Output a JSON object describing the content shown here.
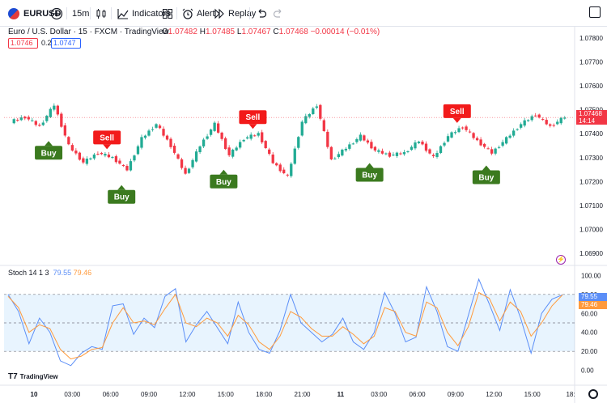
{
  "toolbar": {
    "symbol": "EURUSD",
    "interval": "15m",
    "indicators_label": "Indicators",
    "alert_label": "Alert",
    "replay_label": "Replay"
  },
  "legend": {
    "title": "Euro / U.S. Dollar · 15 · FXCM · TradingView",
    "o_label": "O",
    "o_value": "1.07482",
    "h_label": "H",
    "h_value": "1.07485",
    "l_label": "L",
    "l_value": "1.07467",
    "c_label": "C",
    "c_value": "1.07468",
    "change": "−0.00014 (−0.01%)",
    "bid": "1.0746",
    "spread": "0.2",
    "ask": "1.0747"
  },
  "price_tag": {
    "price": "1.07468",
    "countdown": "14:14"
  },
  "stoch": {
    "name": "Stoch",
    "params": "14 1 3",
    "k_value": "79.55",
    "d_value": "79.46"
  },
  "branding": "TradingView",
  "signals": {
    "buy_label": "Buy",
    "sell_label": "Sell",
    "buy_ticks": [
      2,
      7,
      14,
      24,
      32
    ],
    "sell_ticks": [
      16,
      6,
      30
    ]
  },
  "colors": {
    "up": "#22ab94",
    "down": "#f23645",
    "stoch_k": "#5b8ef7",
    "stoch_d": "#ff9a3c",
    "buy": "#3b7a1f",
    "sell": "#f21a1a"
  },
  "chart_data": [
    {
      "type": "candlestick",
      "title": "Euro / U.S. Dollar · 15 · FXCM · TradingView",
      "y_ticks": [
        "1.07800",
        "1.07700",
        "1.07600",
        "1.07500",
        "1.07400",
        "1.07300",
        "1.07200",
        "1.07100",
        "1.07000",
        "1.06900"
      ],
      "x_ticks": [
        "10",
        "03:00",
        "06:00",
        "09:00",
        "12:00",
        "15:00",
        "18:00",
        "21:00",
        "11",
        "03:00",
        "06:00",
        "09:00",
        "12:00",
        "15:00",
        "18:"
      ],
      "ylim": [
        1.0685,
        1.0783
      ],
      "last_price": 1.07468,
      "closes": [
        1.0747,
        1.0743,
        1.0752,
        1.0735,
        1.0728,
        1.0732,
        1.073,
        1.0725,
        1.0738,
        1.0744,
        1.0735,
        1.0723,
        1.0735,
        1.0744,
        1.0731,
        1.0738,
        1.074,
        1.0728,
        1.0722,
        1.0745,
        1.0752,
        1.0729,
        1.0734,
        1.0739,
        1.0733,
        1.0731,
        1.0732,
        1.0737,
        1.073,
        1.0739,
        1.0743,
        1.0737,
        1.0732,
        1.0738,
        1.0744,
        1.0748,
        1.0743,
        1.0747
      ]
    },
    {
      "type": "line",
      "title": "Stoch 14 1 3",
      "y_ticks": [
        "100.00",
        "80.00",
        "60.00",
        "40.00",
        "20.00",
        "0.00"
      ],
      "ylim": [
        -2,
        102
      ],
      "bands": [
        20,
        50,
        80
      ],
      "series": [
        {
          "name": "%K",
          "values": [
            80,
            62,
            28,
            55,
            40,
            10,
            5,
            18,
            25,
            22,
            68,
            70,
            38,
            55,
            45,
            78,
            86,
            30,
            48,
            62,
            45,
            28,
            72,
            40,
            22,
            18,
            42,
            80,
            50,
            40,
            30,
            38,
            55,
            30,
            22,
            40,
            82,
            60,
            30,
            35,
            88,
            62,
            25,
            20,
            58,
            96,
            70,
            42,
            85,
            55,
            18,
            60,
            75,
            79.55
          ]
        },
        {
          "name": "%D",
          "values": [
            78,
            66,
            40,
            48,
            44,
            22,
            12,
            15,
            22,
            24,
            50,
            66,
            50,
            52,
            48,
            65,
            80,
            50,
            46,
            55,
            50,
            36,
            58,
            48,
            30,
            22,
            36,
            62,
            56,
            44,
            36,
            36,
            46,
            38,
            28,
            36,
            66,
            62,
            40,
            36,
            72,
            66,
            40,
            26,
            46,
            82,
            76,
            52,
            72,
            62,
            36,
            50,
            68,
            79.46
          ]
        }
      ]
    }
  ]
}
